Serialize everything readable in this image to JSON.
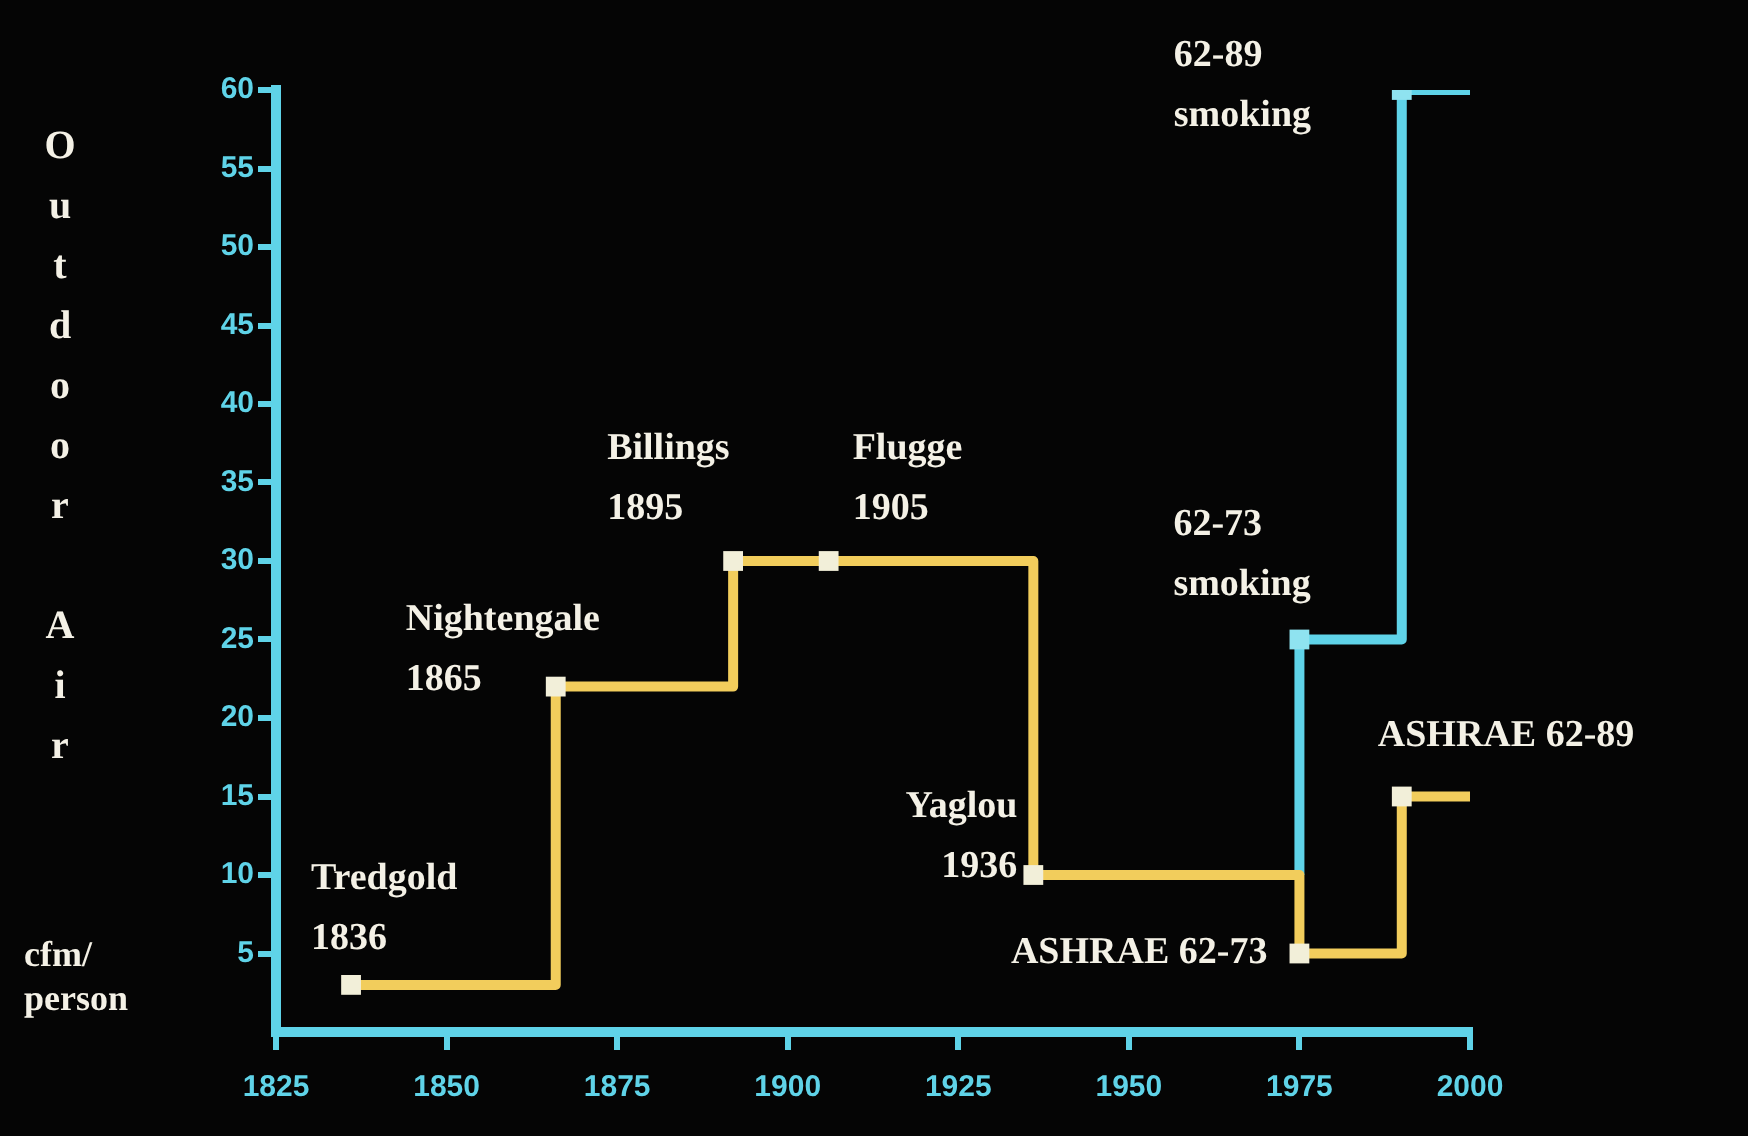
{
  "chart_data": {
    "type": "line",
    "ylabel": "Outdoor Air",
    "xlim": [
      1825,
      2000
    ],
    "xticks": [
      1825,
      1850,
      1875,
      1900,
      1925,
      1950,
      1975,
      2000
    ],
    "ylim": [
      0,
      60
    ],
    "yticks": [
      5,
      10,
      15,
      20,
      25,
      30,
      35,
      40,
      45,
      50,
      55,
      60
    ],
    "grid": false,
    "legend": false,
    "line_style": "solid",
    "series": [
      {
        "type": "line",
        "color": "#f2cd5c",
        "marker": "none",
        "x": [
          1836,
          1866,
          1866,
          1892,
          1892,
          1936,
          1936,
          1975,
          1975,
          1990,
          1990,
          2000
        ],
        "values": [
          3,
          3,
          22,
          22,
          30,
          30,
          10,
          10,
          5,
          5,
          15,
          15
        ]
      },
      {
        "type": "line",
        "color": "#5fd3e8",
        "marker": "none",
        "x": [
          1975,
          1975,
          1990,
          1990,
          2000
        ],
        "values": [
          10,
          25,
          25,
          60,
          60
        ]
      },
      {
        "type": "scatter",
        "color": "#f2efd9",
        "marker": "square",
        "x": [
          1836,
          1866,
          1892,
          1906,
          1936,
          1975,
          1990
        ],
        "values": [
          3,
          22,
          30,
          30,
          10,
          5,
          15
        ]
      },
      {
        "type": "scatter",
        "color": "#8fe3f0",
        "marker": "square",
        "x": [
          1975,
          1990
        ],
        "values": [
          25,
          60
        ]
      }
    ],
    "annotations": [
      {
        "text": "Tredgold\n1836",
        "x": 1836,
        "y": 3
      },
      {
        "text": "Nightengale\n1865",
        "x": 1866,
        "y": 22
      },
      {
        "text": "Billings\n1895",
        "x": 1892,
        "y": 30
      },
      {
        "text": "Flugge\n1905",
        "x": 1906,
        "y": 30
      },
      {
        "text": "Yaglou\n1936",
        "x": 1936,
        "y": 10
      },
      {
        "text": "62-73\nsmoking",
        "x": 1975,
        "y": 25
      },
      {
        "text": "62-89\nsmoking",
        "x": 1990,
        "y": 60
      },
      {
        "text": "ASHRAE 62-73",
        "x": 1975,
        "y": 5
      },
      {
        "text": "ASHRAE 62-89",
        "x": 1990,
        "y": 15
      },
      "cfm/\nperson"
    ]
  }
}
